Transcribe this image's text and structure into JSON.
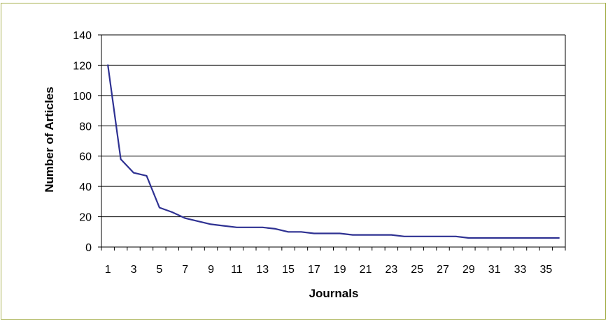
{
  "chart_data": {
    "type": "line",
    "title": "",
    "xlabel": "Journals",
    "ylabel": "Number of Articles",
    "x": [
      1,
      2,
      3,
      4,
      5,
      6,
      7,
      8,
      9,
      10,
      11,
      12,
      13,
      14,
      15,
      16,
      17,
      18,
      19,
      20,
      21,
      22,
      23,
      24,
      25,
      26,
      27,
      28,
      29,
      30,
      31,
      32,
      33,
      34,
      35,
      36
    ],
    "series": [
      {
        "values": [
          120,
          58,
          49,
          47,
          26,
          23,
          19,
          17,
          15,
          14,
          13,
          13,
          13,
          12,
          10,
          10,
          9,
          9,
          9,
          8,
          8,
          8,
          8,
          7,
          7,
          7,
          7,
          7,
          6,
          6,
          6,
          6,
          6,
          6,
          6,
          6
        ]
      }
    ],
    "xticks": [
      "1",
      "3",
      "5",
      "7",
      "9",
      "11",
      "13",
      "15",
      "17",
      "19",
      "21",
      "23",
      "25",
      "27",
      "29",
      "31",
      "33",
      "35"
    ],
    "yticks": [
      "0",
      "20",
      "40",
      "60",
      "80",
      "100",
      "120",
      "140"
    ],
    "xlim": [
      1,
      36
    ],
    "ylim": [
      0,
      140
    ],
    "grid": "horizontal",
    "legend": "none",
    "colors": {
      "line": "#2e3192",
      "grid": "#000000",
      "frame": "#a6b04e"
    }
  }
}
